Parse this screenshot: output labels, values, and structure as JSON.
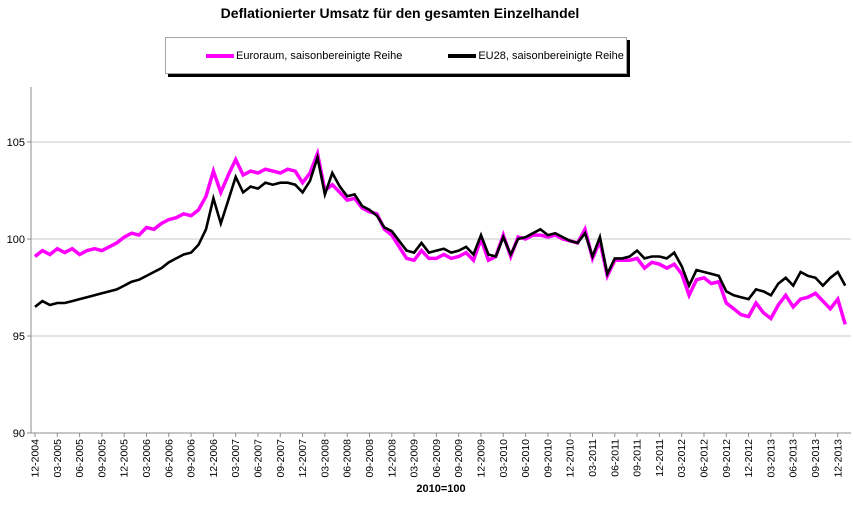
{
  "title": "Deflationierter Umsatz für den gesamten Einzelhandel",
  "legend": {
    "items": [
      {
        "label": "Euroraum, saisonbereinigte Reihe",
        "color": "#ff00ff"
      },
      {
        "label": "EU28, saisonbereinigte Reihe",
        "color": "#000000"
      }
    ]
  },
  "colors": {
    "grid": "#c9c9c9",
    "axis": "#8c8c8c",
    "background": "#ffffff",
    "text": "#000000"
  },
  "chart_data": {
    "type": "line",
    "title": "Deflationierter Umsatz für den gesamten Einzelhandel",
    "xlabel": "2010=100",
    "ylabel": "",
    "ylim": [
      90,
      107.7
    ],
    "y_ticks": [
      90,
      95,
      100,
      105
    ],
    "x_tick_every": 3,
    "grid": "horizontal",
    "legend_position": "top",
    "categories": [
      "12-2004",
      "01-2005",
      "02-2005",
      "03-2005",
      "04-2005",
      "05-2005",
      "06-2005",
      "07-2005",
      "08-2005",
      "09-2005",
      "10-2005",
      "11-2005",
      "12-2005",
      "01-2006",
      "02-2006",
      "03-2006",
      "04-2006",
      "05-2006",
      "06-2006",
      "07-2006",
      "08-2006",
      "09-2006",
      "10-2006",
      "11-2006",
      "12-2006",
      "01-2007",
      "02-2007",
      "03-2007",
      "04-2007",
      "05-2007",
      "06-2007",
      "07-2007",
      "08-2007",
      "09-2007",
      "10-2007",
      "11-2007",
      "12-2007",
      "01-2008",
      "02-2008",
      "03-2008",
      "04-2008",
      "05-2008",
      "06-2008",
      "07-2008",
      "08-2008",
      "09-2008",
      "10-2008",
      "11-2008",
      "12-2008",
      "01-2009",
      "02-2009",
      "03-2009",
      "04-2009",
      "05-2009",
      "06-2009",
      "07-2009",
      "08-2009",
      "09-2009",
      "10-2009",
      "11-2009",
      "12-2009",
      "01-2010",
      "02-2010",
      "03-2010",
      "04-2010",
      "05-2010",
      "06-2010",
      "07-2010",
      "08-2010",
      "09-2010",
      "10-2010",
      "11-2010",
      "12-2010",
      "01-2011",
      "02-2011",
      "03-2011",
      "04-2011",
      "05-2011",
      "06-2011",
      "07-2011",
      "08-2011",
      "09-2011",
      "10-2011",
      "11-2011",
      "12-2011",
      "01-2012",
      "02-2012",
      "03-2012",
      "04-2012",
      "05-2012",
      "06-2012",
      "07-2012",
      "08-2012",
      "09-2012",
      "10-2012",
      "11-2012",
      "12-2012",
      "01-2013",
      "02-2013",
      "03-2013",
      "04-2013",
      "05-2013",
      "06-2013",
      "07-2013",
      "08-2013",
      "09-2013",
      "10-2013",
      "11-2013",
      "12-2013",
      "01-2014"
    ],
    "series": [
      {
        "name": "Euroraum, saisonbereinigte Reihe",
        "color": "#ff00ff",
        "values": [
          99.1,
          99.4,
          99.2,
          99.5,
          99.3,
          99.5,
          99.2,
          99.4,
          99.5,
          99.4,
          99.6,
          99.8,
          100.1,
          100.3,
          100.2,
          100.6,
          100.5,
          100.8,
          101.0,
          101.1,
          101.3,
          101.2,
          101.5,
          102.2,
          103.5,
          102.4,
          103.3,
          104.1,
          103.3,
          103.5,
          103.4,
          103.6,
          103.5,
          103.4,
          103.6,
          103.5,
          102.9,
          103.4,
          104.4,
          102.5,
          102.8,
          102.4,
          102.0,
          102.1,
          101.6,
          101.4,
          101.3,
          100.5,
          100.2,
          99.6,
          99.0,
          98.9,
          99.4,
          99.0,
          99.0,
          99.2,
          99.0,
          99.1,
          99.3,
          98.9,
          100.0,
          98.9,
          99.1,
          100.2,
          99.1,
          100.1,
          100.0,
          100.2,
          100.2,
          100.1,
          100.2,
          100.0,
          99.9,
          99.8,
          100.5,
          99.0,
          99.9,
          98.1,
          98.9,
          98.9,
          98.9,
          99.0,
          98.5,
          98.8,
          98.7,
          98.5,
          98.7,
          98.2,
          97.1,
          97.9,
          98.0,
          97.7,
          97.8,
          96.7,
          96.4,
          96.1,
          96.0,
          96.7,
          96.2,
          95.9,
          96.6,
          97.1,
          96.5,
          96.9,
          97.0,
          97.2,
          96.8,
          96.4,
          96.9,
          95.6
        ]
      },
      {
        "name": "EU28, saisonbereinigte Reihe",
        "color": "#000000",
        "values": [
          96.5,
          96.8,
          96.6,
          96.7,
          96.7,
          96.8,
          96.9,
          97.0,
          97.1,
          97.2,
          97.3,
          97.4,
          97.6,
          97.8,
          97.9,
          98.1,
          98.3,
          98.5,
          98.8,
          99.0,
          99.2,
          99.3,
          99.7,
          100.5,
          102.1,
          100.8,
          102.0,
          103.2,
          102.4,
          102.7,
          102.6,
          102.9,
          102.8,
          102.9,
          102.9,
          102.8,
          102.4,
          103.0,
          104.2,
          102.3,
          103.4,
          102.7,
          102.2,
          102.3,
          101.7,
          101.5,
          101.2,
          100.6,
          100.4,
          99.9,
          99.4,
          99.3,
          99.8,
          99.3,
          99.4,
          99.5,
          99.3,
          99.4,
          99.6,
          99.2,
          100.2,
          99.2,
          99.1,
          100.1,
          99.2,
          100.0,
          100.1,
          100.3,
          100.5,
          100.2,
          100.3,
          100.1,
          99.9,
          99.8,
          100.3,
          99.1,
          100.1,
          98.2,
          99.0,
          99.0,
          99.1,
          99.4,
          99.0,
          99.1,
          99.1,
          99.0,
          99.3,
          98.6,
          97.6,
          98.4,
          98.3,
          98.2,
          98.1,
          97.3,
          97.1,
          97.0,
          96.9,
          97.4,
          97.3,
          97.1,
          97.7,
          98.0,
          97.6,
          98.3,
          98.1,
          98.0,
          97.6,
          98.0,
          98.3,
          97.6
        ]
      }
    ]
  }
}
